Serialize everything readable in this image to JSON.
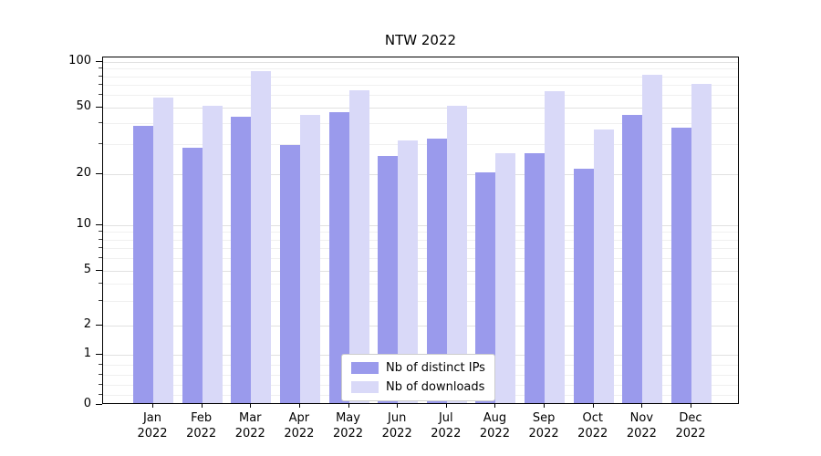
{
  "chart_data": {
    "type": "bar",
    "title": "NTW 2022",
    "categories": [
      "Jan 2022",
      "Feb 2022",
      "Mar 2022",
      "Apr 2022",
      "May 2022",
      "Jun 2022",
      "Jul 2022",
      "Aug 2022",
      "Sep 2022",
      "Oct 2022",
      "Nov 2022",
      "Dec 2022"
    ],
    "series": [
      {
        "name": "Nb of distinct IPs",
        "color": "#9a9aec",
        "values": [
          38,
          28,
          43,
          29,
          46,
          25,
          32,
          20,
          26,
          21,
          44,
          37
        ]
      },
      {
        "name": "Nb of downloads",
        "color": "#d9d9f8",
        "values": [
          57,
          50,
          85,
          44,
          63,
          31,
          50,
          26,
          62,
          36,
          80,
          70
        ]
      }
    ],
    "xlabel": "",
    "ylabel": "",
    "yscale": "symlog",
    "ylim": [
      0,
      110
    ],
    "yticks": [
      100,
      50,
      20,
      10,
      5,
      2,
      1,
      0
    ],
    "minor_yticks": [
      0.2,
      0.4,
      0.6,
      0.8,
      3,
      4,
      6,
      7,
      8,
      9,
      30,
      40,
      60,
      70,
      80,
      90
    ],
    "grid": true,
    "legend_position": "lower center"
  }
}
